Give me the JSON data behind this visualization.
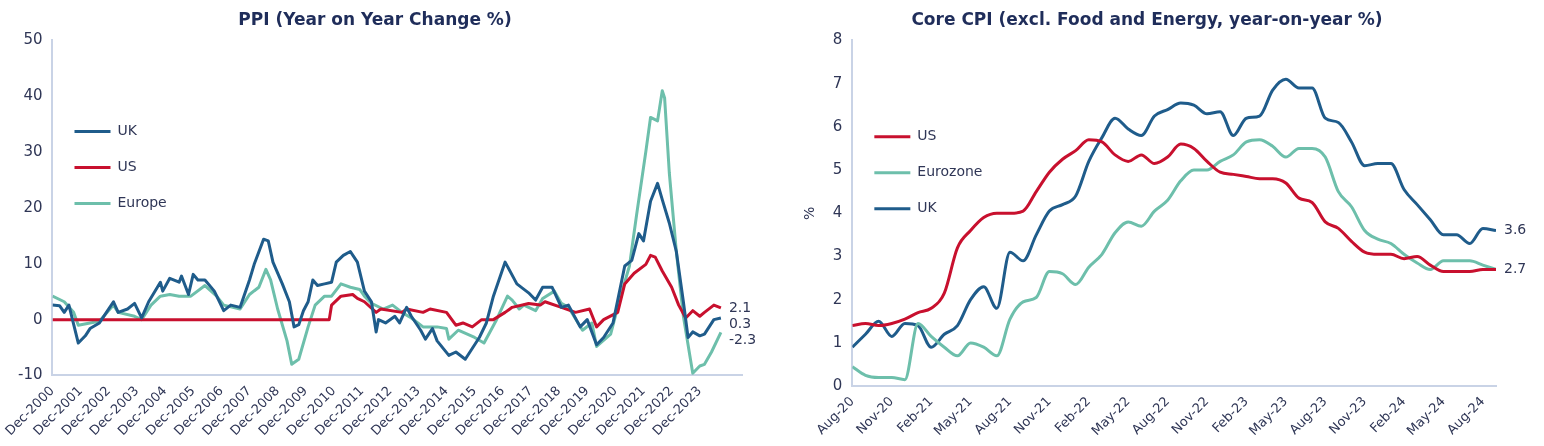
{
  "chart_data": [
    {
      "type": "line",
      "title": "PPI (Year on Year Change %)",
      "legend": "top",
      "xlim": [
        "2000-12",
        "2025-06"
      ],
      "ylim": [
        -10,
        50
      ],
      "yticks": [
        -10,
        0,
        10,
        20,
        30,
        40,
        50
      ],
      "xticks": [
        {
          "value": "2000-12",
          "label": "Dec-2000"
        },
        {
          "value": "2001-12",
          "label": "Dec-2001"
        },
        {
          "value": "2002-12",
          "label": "Dec-2002"
        },
        {
          "value": "2003-12",
          "label": "Dec-2003"
        },
        {
          "value": "2004-12",
          "label": "Dec-2004"
        },
        {
          "value": "2005-12",
          "label": "Dec-2005"
        },
        {
          "value": "2006-12",
          "label": "Dec-2006"
        },
        {
          "value": "2007-12",
          "label": "Dec-2007"
        },
        {
          "value": "2008-12",
          "label": "Dec-2008"
        },
        {
          "value": "2009-12",
          "label": "Dec-2009"
        },
        {
          "value": "2010-12",
          "label": "Dec-2010"
        },
        {
          "value": "2011-12",
          "label": "Dec-2011"
        },
        {
          "value": "2012-12",
          "label": "Dec-2012"
        },
        {
          "value": "2013-12",
          "label": "Dec-2013"
        },
        {
          "value": "2014-12",
          "label": "Dec-2014"
        },
        {
          "value": "2015-12",
          "label": "Dec-2015"
        },
        {
          "value": "2016-12",
          "label": "Dec-2016"
        },
        {
          "value": "2017-12",
          "label": "Dec-2017"
        },
        {
          "value": "2018-12",
          "label": "Dec-2018"
        },
        {
          "value": "2019-12",
          "label": "Dec-2019"
        },
        {
          "value": "2020-12",
          "label": "Dec-2020"
        },
        {
          "value": "2021-12",
          "label": "Dec-2021"
        },
        {
          "value": "2022-12",
          "label": "Dec-2022"
        },
        {
          "value": "2023-12",
          "label": "Dec-2023"
        }
      ],
      "series": [
        {
          "name": "UK",
          "color": "#1f5c8b",
          "x": [
            "2000-12",
            "2001-03",
            "2001-05",
            "2001-07",
            "2001-11",
            "2002-02",
            "2002-04",
            "2002-08",
            "2002-11",
            "2003-02",
            "2003-04",
            "2003-08",
            "2003-11",
            "2004-02",
            "2004-05",
            "2004-10",
            "2004-11",
            "2005-02",
            "2005-06",
            "2005-07",
            "2005-10",
            "2005-12",
            "2006-02",
            "2006-05",
            "2006-09",
            "2007-01",
            "2007-04",
            "2007-08",
            "2007-12",
            "2008-02",
            "2008-06",
            "2008-08",
            "2008-10",
            "2009-02",
            "2009-05",
            "2009-07",
            "2009-09",
            "2009-11",
            "2010-01",
            "2010-03",
            "2010-05",
            "2010-08",
            "2010-11",
            "2011-01",
            "2011-04",
            "2011-07",
            "2011-10",
            "2012-01",
            "2012-04",
            "2012-06",
            "2012-07",
            "2012-10",
            "2013-02",
            "2013-04",
            "2013-07",
            "2013-09",
            "2014-01",
            "2014-03",
            "2014-06",
            "2014-08",
            "2015-01",
            "2015-04",
            "2015-08",
            "2015-10",
            "2016-02",
            "2016-05",
            "2016-08",
            "2017-01",
            "2017-06",
            "2017-11",
            "2018-02",
            "2018-05",
            "2018-09",
            "2019-01",
            "2019-04",
            "2019-09",
            "2019-12",
            "2020-04",
            "2020-07",
            "2020-11",
            "2021-04",
            "2021-07",
            "2021-10",
            "2021-12",
            "2022-03",
            "2022-06",
            "2022-08",
            "2022-11",
            "2023-02",
            "2023-05",
            "2023-07",
            "2023-09",
            "2023-12",
            "2024-02",
            "2024-06",
            "2024-09"
          ],
          "values": [
            2.6,
            2.5,
            1.3,
            2.6,
            -4.2,
            -2.9,
            -1.6,
            -0.6,
            1.3,
            3.2,
            1.3,
            1.9,
            2.9,
            0.3,
            3.2,
            6.7,
            5.1,
            7.4,
            6.7,
            7.8,
            4.5,
            8.1,
            7.1,
            7.1,
            5.1,
            1.6,
            2.6,
            2.2,
            7.1,
            9.9,
            14.4,
            14.1,
            10.3,
            6.4,
            3.2,
            -1.3,
            -0.9,
            1.6,
            3.2,
            7.1,
            6.1,
            6.4,
            6.7,
            10.3,
            11.5,
            12.2,
            10.3,
            5.1,
            3.2,
            -2.2,
            0,
            -0.6,
            0.6,
            -0.6,
            2.2,
            0.6,
            -1.9,
            -3.5,
            -1.6,
            -3.8,
            -6.4,
            -5.8,
            -7.1,
            -5.8,
            -3.2,
            -0.6,
            4.2,
            10.3,
            6.4,
            4.8,
            3.5,
            5.8,
            5.8,
            2.2,
            2.6,
            -1.3,
            0,
            -4.5,
            -3.2,
            -0.6,
            9.6,
            10.6,
            15.4,
            14.1,
            21.2,
            24.4,
            21.5,
            17.3,
            12.2,
            3.2,
            -3.2,
            -2.2,
            -2.9,
            -2.6,
            0,
            0.3
          ]
        },
        {
          "name": "US",
          "color": "#c8102e",
          "x": [
            "2000-12",
            "2010-10",
            "2010-11",
            "2011-03",
            "2011-08",
            "2011-10",
            "2012-01",
            "2012-06",
            "2012-08",
            "2013-05",
            "2013-07",
            "2014-02",
            "2014-05",
            "2014-12",
            "2015-04",
            "2015-07",
            "2015-11",
            "2016-03",
            "2016-08",
            "2017-01",
            "2017-04",
            "2017-11",
            "2018-04",
            "2018-06",
            "2019-01",
            "2019-07",
            "2020-01",
            "2020-04",
            "2020-07",
            "2021-01",
            "2021-04",
            "2021-08",
            "2022-01",
            "2022-03",
            "2022-05",
            "2022-08",
            "2022-12",
            "2023-03",
            "2023-06",
            "2023-09",
            "2023-12",
            "2024-02",
            "2024-06",
            "2024-09"
          ],
          "values": [
            0,
            0,
            2.6,
            4.2,
            4.5,
            3.8,
            3.2,
            1.3,
            1.9,
            1.3,
            1.9,
            1.3,
            1.9,
            1.3,
            -1.0,
            -0.6,
            -1.3,
            0,
            0,
            1.3,
            2.2,
            2.9,
            2.6,
            3.2,
            2.2,
            1.3,
            1.9,
            -1.3,
            0,
            1.3,
            6.4,
            8.3,
            9.9,
            11.5,
            11.2,
            8.7,
            5.8,
            2.6,
            0.3,
            1.6,
            0.6,
            1.3,
            2.6,
            2.1
          ]
        },
        {
          "name": "Europe",
          "color": "#6dbfab",
          "x": [
            "2000-12",
            "2001-05",
            "2001-09",
            "2001-11",
            "2002-04",
            "2002-08",
            "2003-02",
            "2003-04",
            "2003-11",
            "2004-02",
            "2004-06",
            "2004-10",
            "2005-02",
            "2005-06",
            "2005-11",
            "2006-05",
            "2006-10",
            "2007-01",
            "2007-08",
            "2007-12",
            "2008-04",
            "2008-07",
            "2008-09",
            "2008-12",
            "2009-04",
            "2009-06",
            "2009-09",
            "2010-01",
            "2010-04",
            "2010-08",
            "2010-11",
            "2011-03",
            "2011-07",
            "2011-11",
            "2012-01",
            "2012-04",
            "2012-09",
            "2013-01",
            "2013-05",
            "2013-09",
            "2014-02",
            "2014-08",
            "2014-12",
            "2015-01",
            "2015-05",
            "2015-12",
            "2016-04",
            "2016-09",
            "2017-02",
            "2017-04",
            "2017-07",
            "2017-09",
            "2018-02",
            "2018-05",
            "2018-10",
            "2019-01",
            "2019-04",
            "2019-10",
            "2020-02",
            "2020-04",
            "2020-10",
            "2021-02",
            "2021-06",
            "2021-09",
            "2022-01",
            "2022-03",
            "2022-06",
            "2022-08",
            "2022-09",
            "2022-11",
            "2023-02",
            "2023-05",
            "2023-09",
            "2023-12",
            "2024-02",
            "2024-05",
            "2024-09"
          ],
          "values": [
            4.2,
            3.2,
            1.3,
            -1.0,
            -0.6,
            -0.3,
            2.6,
            1.3,
            0.6,
            0,
            2.6,
            4.2,
            4.5,
            4.2,
            4.2,
            6.1,
            4.2,
            2.6,
            1.9,
            4.5,
            5.8,
            9.0,
            7.1,
            1.9,
            -3.8,
            -8.0,
            -7.1,
            -1.3,
            2.6,
            4.2,
            4.2,
            6.4,
            5.8,
            5.4,
            4.2,
            2.9,
            1.9,
            2.6,
            1.3,
            0.3,
            -1.3,
            -1.3,
            -1.6,
            -3.5,
            -1.9,
            -3.2,
            -4.2,
            -0.3,
            4.2,
            3.5,
            1.9,
            2.6,
            1.6,
            3.8,
            5.1,
            2.9,
            2.2,
            -1.9,
            -0.6,
            -4.8,
            -2.6,
            3.8,
            9.6,
            18.6,
            30.1,
            36.2,
            35.6,
            41.0,
            39.7,
            26.3,
            12.2,
            0.6,
            -9.6,
            -8.3,
            -8.0,
            -5.8,
            -2.3
          ]
        }
      ],
      "annotations": [
        {
          "text": "2.1",
          "x": "2024-09",
          "y": 2.1
        },
        {
          "text": "0.3",
          "x": "2024-09",
          "y": 0.3
        },
        {
          "text": "-2.3",
          "x": "2024-09",
          "y": -2.3
        }
      ]
    },
    {
      "type": "line",
      "title": "Core CPI (excl. Food and Energy, year-on-year %)",
      "ylabel": "%",
      "legend": "top",
      "xlim": [
        "2020-08",
        "2024-09"
      ],
      "ylim": [
        0,
        8
      ],
      "yticks": [
        0,
        1,
        2,
        3,
        4,
        5,
        6,
        7,
        8
      ],
      "xticks": [
        {
          "value": "2020-08",
          "label": "Aug-20"
        },
        {
          "value": "2020-11",
          "label": "Nov-20"
        },
        {
          "value": "2021-02",
          "label": "Feb-21"
        },
        {
          "value": "2021-05",
          "label": "May-21"
        },
        {
          "value": "2021-08",
          "label": "Aug-21"
        },
        {
          "value": "2021-11",
          "label": "Nov-21"
        },
        {
          "value": "2022-02",
          "label": "Feb-22"
        },
        {
          "value": "2022-05",
          "label": "May-22"
        },
        {
          "value": "2022-08",
          "label": "Aug-22"
        },
        {
          "value": "2022-11",
          "label": "Nov-22"
        },
        {
          "value": "2023-02",
          "label": "Feb-23"
        },
        {
          "value": "2023-05",
          "label": "May-23"
        },
        {
          "value": "2023-08",
          "label": "Aug-23"
        },
        {
          "value": "2023-11",
          "label": "Nov-23"
        },
        {
          "value": "2024-02",
          "label": "Feb-24"
        },
        {
          "value": "2024-05",
          "label": "May-24"
        },
        {
          "value": "2024-08",
          "label": "Aug-24"
        }
      ],
      "x": [
        "2020-08",
        "2020-09",
        "2020-10",
        "2020-11",
        "2020-12",
        "2021-01",
        "2021-02",
        "2021-03",
        "2021-04",
        "2021-05",
        "2021-06",
        "2021-07",
        "2021-08",
        "2021-09",
        "2021-10",
        "2021-11",
        "2021-12",
        "2022-01",
        "2022-02",
        "2022-03",
        "2022-04",
        "2022-05",
        "2022-06",
        "2022-07",
        "2022-08",
        "2022-09",
        "2022-10",
        "2022-11",
        "2022-12",
        "2023-01",
        "2023-02",
        "2023-03",
        "2023-04",
        "2023-05",
        "2023-06",
        "2023-07",
        "2023-08",
        "2023-09",
        "2023-10",
        "2023-11",
        "2023-12",
        "2024-01",
        "2024-02",
        "2024-03",
        "2024-04",
        "2024-05",
        "2024-06",
        "2024-07",
        "2024-08",
        "2024-09"
      ],
      "series": [
        {
          "name": "US",
          "color": "#c8102e",
          "values": [
            1.4,
            1.45,
            1.4,
            1.45,
            1.55,
            1.7,
            1.8,
            2.15,
            3.2,
            3.6,
            3.9,
            4.0,
            4.0,
            4.05,
            4.5,
            4.95,
            5.25,
            5.45,
            5.7,
            5.65,
            5.35,
            5.2,
            5.35,
            5.15,
            5.3,
            5.6,
            5.5,
            5.2,
            4.95,
            4.9,
            4.85,
            4.8,
            4.8,
            4.7,
            4.35,
            4.25,
            3.8,
            3.65,
            3.35,
            3.1,
            3.05,
            3.05,
            2.95,
            3.0,
            2.8,
            2.65,
            2.65,
            2.65,
            2.7,
            2.7
          ]
        },
        {
          "name": "Eurozone",
          "color": "#6dbfab",
          "values": [
            0.45,
            0.25,
            0.2,
            0.2,
            0.15,
            1.45,
            1.15,
            0.9,
            0.7,
            1.0,
            0.9,
            0.7,
            1.55,
            1.95,
            2.05,
            2.65,
            2.6,
            2.35,
            2.75,
            3.05,
            3.55,
            3.8,
            3.7,
            4.05,
            4.3,
            4.75,
            5.0,
            5.0,
            5.2,
            5.35,
            5.65,
            5.7,
            5.55,
            5.3,
            5.5,
            5.5,
            5.3,
            4.5,
            4.15,
            3.6,
            3.4,
            3.3,
            3.05,
            2.85,
            2.7,
            2.9,
            2.9,
            2.9,
            2.8,
            2.7
          ]
        },
        {
          "name": "UK",
          "color": "#1f5c8b",
          "values": [
            0.9,
            1.2,
            1.5,
            1.15,
            1.45,
            1.4,
            0.9,
            1.2,
            1.4,
            2.0,
            2.3,
            1.8,
            3.1,
            2.9,
            3.5,
            4.05,
            4.2,
            4.4,
            5.2,
            5.75,
            6.2,
            5.95,
            5.8,
            6.25,
            6.4,
            6.55,
            6.5,
            6.3,
            6.35,
            5.8,
            6.2,
            6.25,
            6.85,
            7.1,
            6.9,
            6.9,
            6.2,
            6.1,
            5.65,
            5.1,
            5.15,
            5.15,
            4.55,
            4.2,
            3.85,
            3.5,
            3.5,
            3.3,
            3.65,
            3.6
          ]
        }
      ],
      "annotations": [
        {
          "text": "3.6",
          "x": "2024-09",
          "y": 3.6
        },
        {
          "text": "2.7",
          "x": "2024-09",
          "y": 2.7
        }
      ]
    }
  ]
}
